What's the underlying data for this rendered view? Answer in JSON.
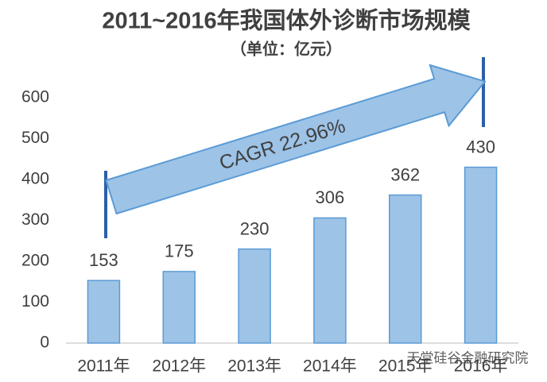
{
  "chart_data": {
    "type": "bar",
    "title": "2011~2016年我国体外诊断市场规模",
    "subtitle": "（单位：亿元）",
    "categories": [
      "2011年",
      "2012年",
      "2013年",
      "2014年",
      "2015年",
      "2016年"
    ],
    "values": [
      153,
      175,
      230,
      306,
      362,
      430
    ],
    "color": "#9dc3e6",
    "ylim": [
      0,
      600
    ],
    "yticks": [
      0,
      100,
      200,
      300,
      400,
      500,
      600
    ],
    "grid": false,
    "annotation": "CAGR 22.96%",
    "watermark": "天堂硅谷金融研究院"
  }
}
